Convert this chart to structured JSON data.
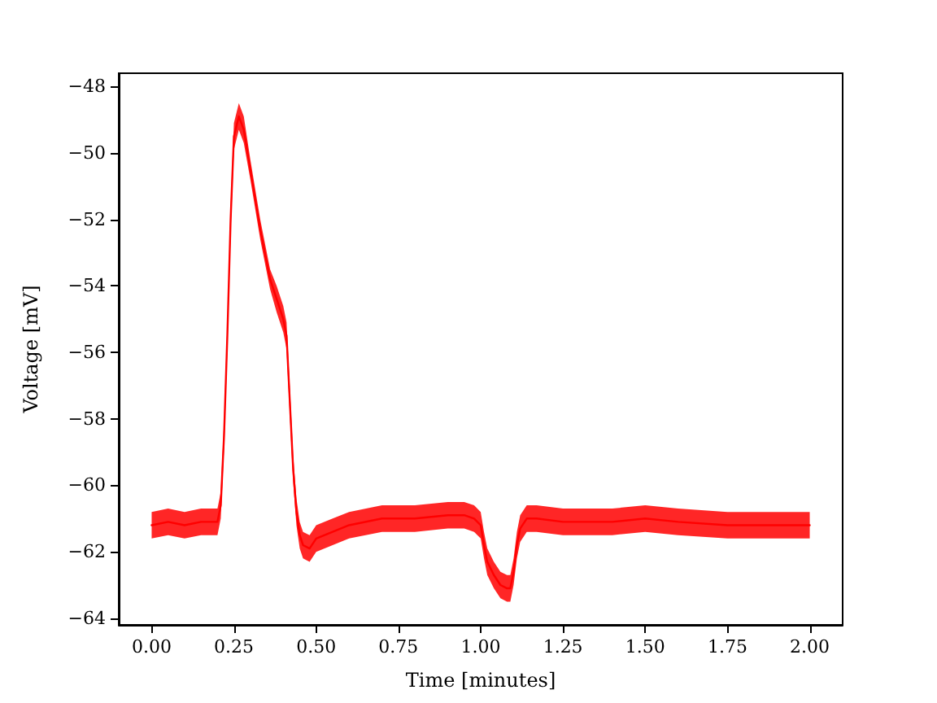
{
  "chart_data": {
    "type": "line",
    "xlabel": "Time [minutes]",
    "ylabel": "Voltage [mV]",
    "x": [
      0,
      0.05,
      0.1,
      0.15,
      0.2,
      0.21,
      0.22,
      0.23,
      0.24,
      0.25,
      0.265,
      0.28,
      0.3,
      0.33,
      0.36,
      0.38,
      0.4,
      0.41,
      0.42,
      0.43,
      0.44,
      0.45,
      0.46,
      0.48,
      0.5,
      0.55,
      0.6,
      0.7,
      0.8,
      0.9,
      0.95,
      0.98,
      1.0,
      1.01,
      1.02,
      1.04,
      1.06,
      1.08,
      1.09,
      1.1,
      1.11,
      1.12,
      1.14,
      1.17,
      1.25,
      1.4,
      1.5,
      1.6,
      1.75,
      1.9,
      2.0
    ],
    "xlim": [
      -0.1,
      2.1
    ],
    "ylim": [
      -64.2,
      -47.6
    ],
    "xticks": [
      {
        "value": 0,
        "label": "0.00"
      },
      {
        "value": 0.25,
        "label": "0.25"
      },
      {
        "value": 0.5,
        "label": "0.50"
      },
      {
        "value": 0.75,
        "label": "0.75"
      },
      {
        "value": 1,
        "label": "1.00"
      },
      {
        "value": 1.25,
        "label": "1.25"
      },
      {
        "value": 1.5,
        "label": "1.50"
      },
      {
        "value": 1.75,
        "label": "1.75"
      },
      {
        "value": 2,
        "label": "2.00"
      }
    ],
    "yticks": [
      {
        "value": -64,
        "label": "−64"
      },
      {
        "value": -62,
        "label": "−62"
      },
      {
        "value": -60,
        "label": "−60"
      },
      {
        "value": -58,
        "label": "−58"
      },
      {
        "value": -56,
        "label": "−56"
      },
      {
        "value": -54,
        "label": "−54"
      },
      {
        "value": -52,
        "label": "−52"
      },
      {
        "value": -50,
        "label": "−50"
      },
      {
        "value": -48,
        "label": "−48"
      }
    ],
    "grid": false,
    "marker": "none",
    "line_style": "solid",
    "series": [
      {
        "color": "#ff0000",
        "values": [
          -61.2,
          -61.1,
          -61.2,
          -61.1,
          -61.1,
          -60.6,
          -58.5,
          -55.5,
          -52,
          -49.5,
          -48.9,
          -49.3,
          -50.5,
          -52.3,
          -53.8,
          -54.4,
          -55,
          -55.5,
          -57.5,
          -59.5,
          -60.8,
          -61.5,
          -61.8,
          -61.9,
          -61.6,
          -61.4,
          -61.2,
          -61.0,
          -61.0,
          -60.9,
          -60.9,
          -61.0,
          -61.2,
          -61.8,
          -62.3,
          -62.7,
          -63.0,
          -63.1,
          -63.1,
          -62.6,
          -61.8,
          -61.3,
          -61.0,
          -61.0,
          -61.1,
          -61.1,
          -61.0,
          -61.1,
          -61.2,
          -61.2,
          -61.2
        ],
        "lower": [
          -61.6,
          -61.5,
          -61.6,
          -61.5,
          -61.5,
          -61.0,
          -58.9,
          -55.9,
          -52.4,
          -49.9,
          -49.3,
          -49.7,
          -50.8,
          -52.6,
          -54.1,
          -54.8,
          -55.4,
          -55.9,
          -57.9,
          -59.9,
          -61.2,
          -61.9,
          -62.2,
          -62.3,
          -62.0,
          -61.8,
          -61.6,
          -61.4,
          -61.4,
          -61.3,
          -61.3,
          -61.4,
          -61.6,
          -62.2,
          -62.7,
          -63.1,
          -63.4,
          -63.5,
          -63.5,
          -63.0,
          -62.2,
          -61.7,
          -61.4,
          -61.4,
          -61.5,
          -61.5,
          -61.4,
          -61.5,
          -61.6,
          -61.6,
          -61.6
        ],
        "upper": [
          -60.8,
          -60.7,
          -60.8,
          -60.7,
          -60.7,
          -60.2,
          -58.1,
          -55.1,
          -51.6,
          -49.1,
          -48.5,
          -48.9,
          -50.2,
          -52.0,
          -53.5,
          -54.0,
          -54.6,
          -55.1,
          -57.1,
          -59.1,
          -60.4,
          -61.1,
          -61.4,
          -61.5,
          -61.2,
          -61.0,
          -60.8,
          -60.6,
          -60.6,
          -60.5,
          -60.5,
          -60.6,
          -60.8,
          -61.4,
          -61.9,
          -62.3,
          -62.6,
          -62.7,
          -62.7,
          -62.2,
          -61.4,
          -60.9,
          -60.6,
          -60.6,
          -60.7,
          -60.7,
          -60.6,
          -60.7,
          -60.8,
          -60.8,
          -60.8
        ]
      }
    ]
  }
}
